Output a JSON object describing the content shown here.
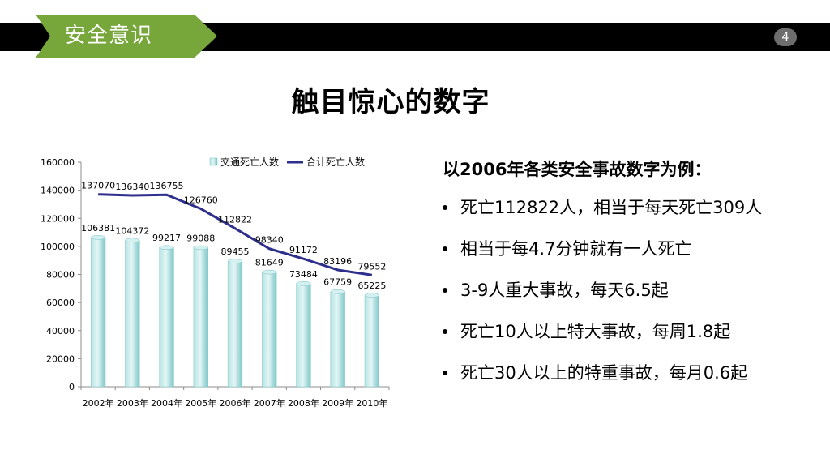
{
  "header": {
    "section_title": "安全意识",
    "page_number": "4"
  },
  "slide": {
    "title": "触目惊心的数字"
  },
  "stats": {
    "heading": "以2006年各类安全事故数字为例：",
    "items": [
      "死亡112822人，相当于每天死亡309人",
      "相当于每4.7分钟就有一人死亡",
      "3-9人重大事故，每天6.5起",
      "死亡10人以上特大事故，每周1.8起",
      "死亡30人以上的特重事故，每月0.6起"
    ]
  },
  "colors": {
    "bar": "#8fd3d4",
    "line": "#2e2f8c",
    "accent": "#77a63b"
  },
  "chart_data": {
    "type": "bar",
    "categories": [
      "2002年",
      "2003年",
      "2004年",
      "2005年",
      "2006年",
      "2007年",
      "2008年",
      "2009年",
      "2010年"
    ],
    "series": [
      {
        "name": "交通死亡人数",
        "type": "bar",
        "values": [
          106381,
          104372,
          99217,
          99088,
          89455,
          81649,
          73484,
          67759,
          65225
        ]
      },
      {
        "name": "合计死亡人数",
        "type": "line",
        "values": [
          137070,
          136340,
          136755,
          126760,
          112822,
          98340,
          91172,
          83196,
          79552
        ]
      }
    ],
    "y_ticks": [
      0,
      20000,
      40000,
      60000,
      80000,
      100000,
      120000,
      140000,
      160000
    ],
    "ylim": [
      0,
      160000
    ],
    "legend": "top",
    "grid": false
  }
}
